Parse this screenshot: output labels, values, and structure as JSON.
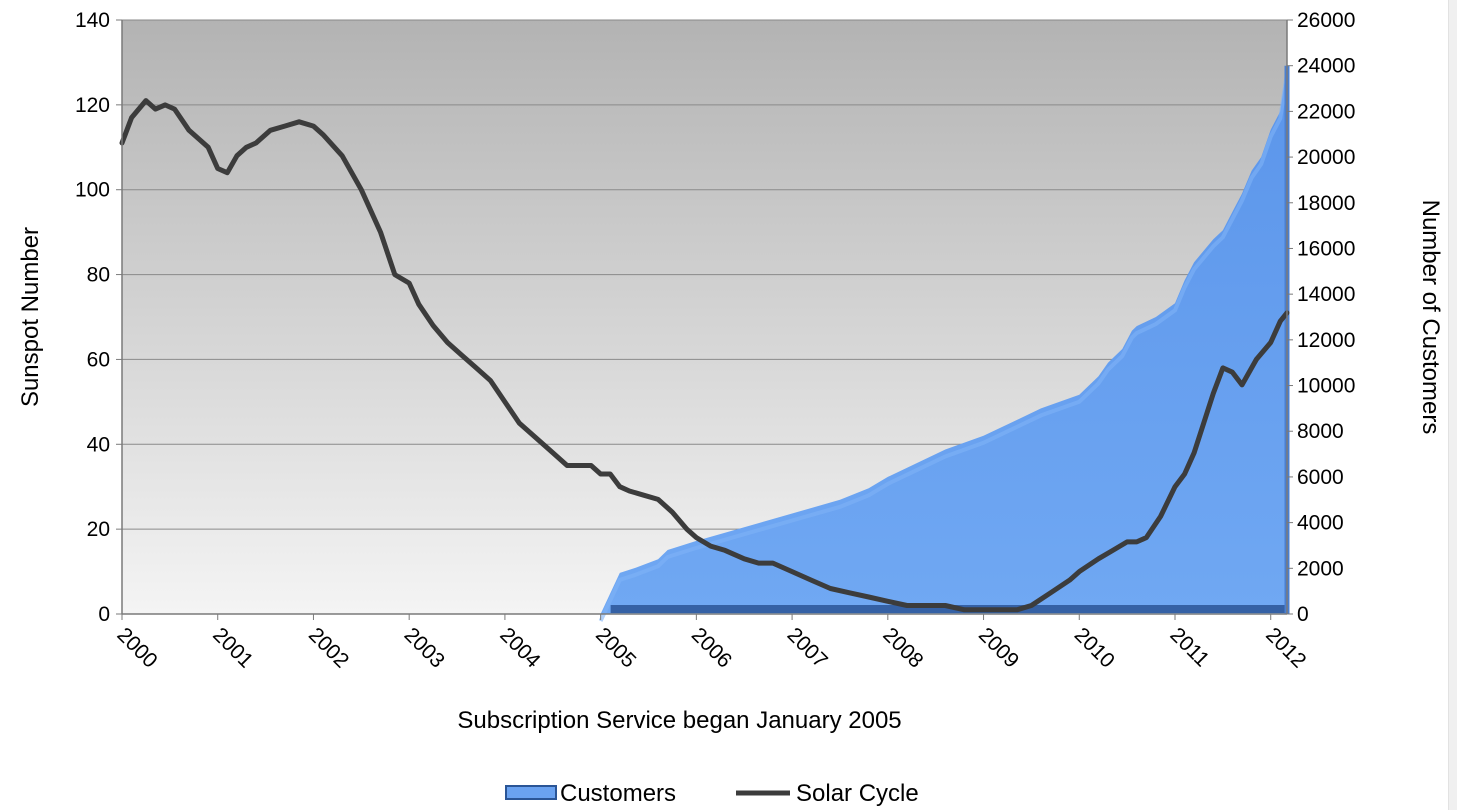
{
  "chart_data": {
    "type": "area+line",
    "xlabel": "Subscription Service began January 2005",
    "ylabel_left": "Sunspot Number",
    "ylabel_right": "Number of Customers",
    "x_range": [
      2000.0,
      2012.17
    ],
    "x_ticks": [
      "2000",
      "2001",
      "2002",
      "2003",
      "2004",
      "2005",
      "2006",
      "2007",
      "2008",
      "2009",
      "2010",
      "2011",
      "2012"
    ],
    "y_left_range": [
      0,
      140
    ],
    "y_left_ticks": [
      "0",
      "20",
      "40",
      "60",
      "80",
      "100",
      "120",
      "140"
    ],
    "y_right_range": [
      0,
      26000
    ],
    "y_right_ticks": [
      "0",
      "2000",
      "4000",
      "6000",
      "8000",
      "10000",
      "12000",
      "14000",
      "16000",
      "18000",
      "20000",
      "22000",
      "24000",
      "26000"
    ],
    "grid": true,
    "legend_position": "bottom",
    "colors": {
      "customers_fill": "#6aa2f0",
      "customers_dark": "#2a5596",
      "solar_line": "#3c3c3c",
      "plot_top": "#b4b4b4",
      "plot_bottom": "#f3f3f3",
      "grid": "#8a8a8a"
    },
    "series": [
      {
        "name": "Customers",
        "axis": "right",
        "kind": "area",
        "x": [
          2005.0,
          2005.2,
          2005.35,
          2005.6,
          2005.7,
          2006.0,
          2006.5,
          2007.0,
          2007.5,
          2007.8,
          2008.0,
          2008.3,
          2008.6,
          2009.0,
          2009.3,
          2009.6,
          2010.0,
          2010.2,
          2010.3,
          2010.45,
          2010.55,
          2010.6,
          2010.8,
          2011.0,
          2011.1,
          2011.2,
          2011.4,
          2011.5,
          2011.6,
          2011.7,
          2011.8,
          2011.9,
          2012.0,
          2012.1,
          2012.17
        ],
        "values": [
          0,
          1800,
          2000,
          2400,
          2800,
          3200,
          3800,
          4400,
          5000,
          5500,
          6000,
          6600,
          7200,
          7800,
          8400,
          9000,
          9600,
          10400,
          11000,
          11600,
          12400,
          12600,
          13000,
          13600,
          14600,
          15400,
          16400,
          16800,
          17600,
          18400,
          19400,
          20000,
          21200,
          22000,
          24000
        ]
      },
      {
        "name": "Solar Cycle",
        "axis": "left",
        "kind": "line",
        "x": [
          2000.0,
          2000.1,
          2000.25,
          2000.35,
          2000.45,
          2000.55,
          2000.7,
          2000.8,
          2000.9,
          2001.0,
          2001.1,
          2001.2,
          2001.3,
          2001.4,
          2001.55,
          2001.7,
          2001.85,
          2002.0,
          2002.1,
          2002.3,
          2002.5,
          2002.7,
          2002.85,
          2003.0,
          2003.1,
          2003.25,
          2003.4,
          2003.55,
          2003.7,
          2003.85,
          2004.0,
          2004.15,
          2004.3,
          2004.5,
          2004.65,
          2004.8,
          2004.9,
          2005.0,
          2005.1,
          2005.2,
          2005.3,
          2005.45,
          2005.6,
          2005.75,
          2005.9,
          2006.0,
          2006.15,
          2006.3,
          2006.5,
          2006.65,
          2006.8,
          2007.0,
          2007.2,
          2007.4,
          2007.6,
          2007.8,
          2008.0,
          2008.2,
          2008.3,
          2008.4,
          2008.6,
          2008.8,
          2009.0,
          2009.2,
          2009.35,
          2009.5,
          2009.7,
          2009.9,
          2010.0,
          2010.2,
          2010.35,
          2010.5,
          2010.6,
          2010.7,
          2010.85,
          2011.0,
          2011.1,
          2011.2,
          2011.3,
          2011.4,
          2011.5,
          2011.6,
          2011.7,
          2011.85,
          2012.0,
          2012.1,
          2012.17
        ],
        "values": [
          111,
          117,
          121,
          119,
          120,
          119,
          114,
          112,
          110,
          105,
          104,
          108,
          110,
          111,
          114,
          115,
          116,
          115,
          113,
          108,
          100,
          90,
          80,
          78,
          73,
          68,
          64,
          61,
          58,
          55,
          50,
          45,
          42,
          38,
          35,
          35,
          35,
          33,
          33,
          30,
          29,
          28,
          27,
          24,
          20,
          18,
          16,
          15,
          13,
          12,
          12,
          10,
          8,
          6,
          5,
          4,
          3,
          2,
          2,
          2,
          2,
          1,
          1,
          1,
          1,
          2,
          5,
          8,
          10,
          13,
          15,
          17,
          17,
          18,
          23,
          30,
          33,
          38,
          45,
          52,
          58,
          57,
          54,
          60,
          64,
          69,
          71
        ]
      }
    ]
  }
}
